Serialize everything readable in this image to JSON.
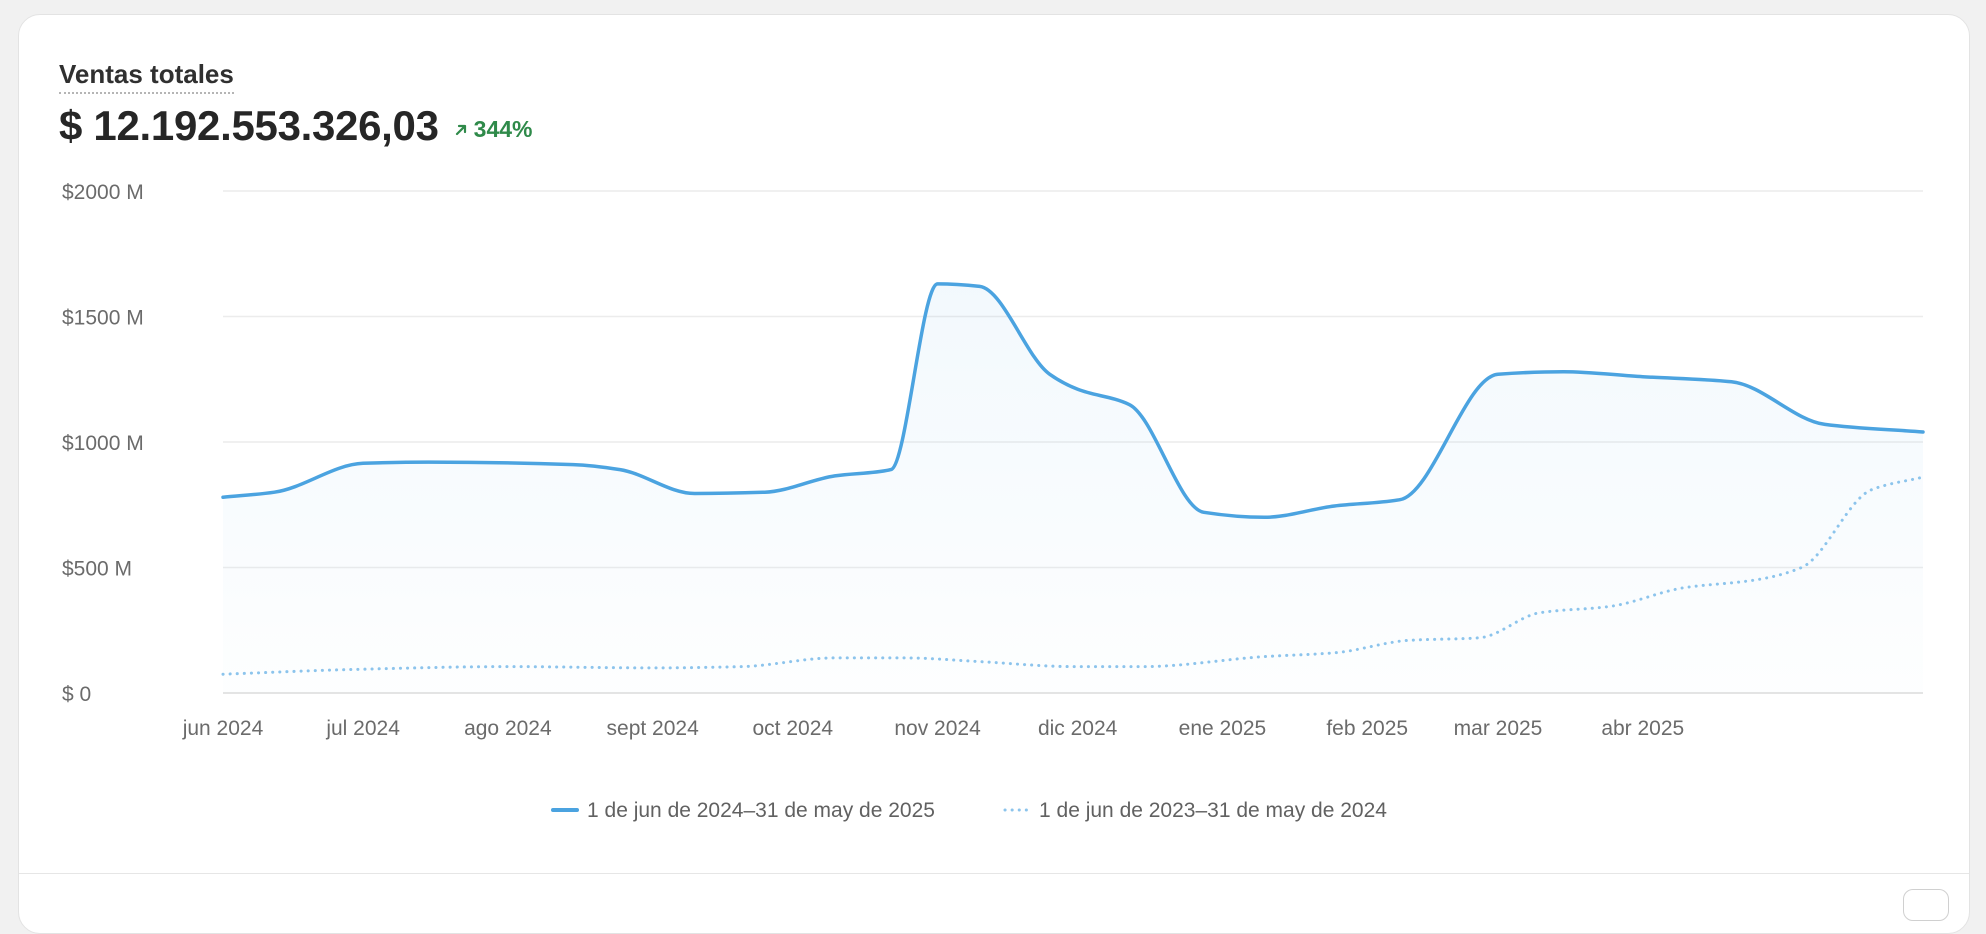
{
  "metric": {
    "title": "Ventas totales",
    "value": "$ 12.192.553.326,03",
    "change": "344%",
    "change_direction": "up",
    "change_color": "#2f8a4a"
  },
  "chart_data": {
    "type": "line",
    "title": "",
    "x_labels": [
      "jun 2024",
      "jul 2024",
      "ago 2024",
      "sept 2024",
      "oct 2024",
      "nov 2024",
      "dic 2024",
      "ene 2025",
      "feb 2025",
      "mar 2025",
      "abr 2025"
    ],
    "y_ticks": [
      {
        "value": 0,
        "label": "$ 0"
      },
      {
        "value": 500,
        "label": "$500 M"
      },
      {
        "value": 1000,
        "label": "$1000 M"
      },
      {
        "value": 1500,
        "label": "$1500 M"
      },
      {
        "value": 2000,
        "label": "$2000 M"
      }
    ],
    "ylim": [
      0,
      2000
    ],
    "y_unit": "M",
    "grid": true,
    "legend_position": "bottom-center",
    "series": [
      {
        "name": "1 de jun de 2024–31 de may de 2025",
        "style": "solid",
        "color": "#4ba3e0",
        "fill": true,
        "points": [
          {
            "x": "2024-06-01",
            "y": 780
          },
          {
            "x": "2024-06-12",
            "y": 800
          },
          {
            "x": "2024-07-01",
            "y": 915
          },
          {
            "x": "2024-07-15",
            "y": 920
          },
          {
            "x": "2024-08-15",
            "y": 910
          },
          {
            "x": "2024-08-25",
            "y": 890
          },
          {
            "x": "2024-09-10",
            "y": 795
          },
          {
            "x": "2024-09-25",
            "y": 800
          },
          {
            "x": "2024-10-10",
            "y": 865
          },
          {
            "x": "2024-10-22",
            "y": 890
          },
          {
            "x": "2024-11-01",
            "y": 1630
          },
          {
            "x": "2024-11-10",
            "y": 1620
          },
          {
            "x": "2024-11-25",
            "y": 1270
          },
          {
            "x": "2024-12-01",
            "y": 1210
          },
          {
            "x": "2024-12-12",
            "y": 1150
          },
          {
            "x": "2024-12-28",
            "y": 720
          },
          {
            "x": "2025-01-10",
            "y": 700
          },
          {
            "x": "2025-01-25",
            "y": 745
          },
          {
            "x": "2025-02-08",
            "y": 770
          },
          {
            "x": "2025-03-01",
            "y": 1270
          },
          {
            "x": "2025-03-15",
            "y": 1280
          },
          {
            "x": "2025-04-01",
            "y": 1260
          },
          {
            "x": "2025-04-20",
            "y": 1240
          },
          {
            "x": "2025-05-10",
            "y": 1070
          },
          {
            "x": "2025-05-31",
            "y": 1040
          }
        ]
      },
      {
        "name": "1 de jun de 2023–31 de may de 2024",
        "style": "dotted",
        "color": "#8cc4ec",
        "fill": false,
        "points": [
          {
            "x": "2024-06-01",
            "y": 75
          },
          {
            "x": "2024-07-01",
            "y": 95
          },
          {
            "x": "2024-08-01",
            "y": 105
          },
          {
            "x": "2024-09-01",
            "y": 100
          },
          {
            "x": "2024-09-20",
            "y": 105
          },
          {
            "x": "2024-10-10",
            "y": 140
          },
          {
            "x": "2024-10-25",
            "y": 140
          },
          {
            "x": "2024-11-10",
            "y": 125
          },
          {
            "x": "2024-11-30",
            "y": 105
          },
          {
            "x": "2024-12-15",
            "y": 105
          },
          {
            "x": "2025-01-10",
            "y": 145
          },
          {
            "x": "2025-01-25",
            "y": 160
          },
          {
            "x": "2025-02-10",
            "y": 210
          },
          {
            "x": "2025-02-25",
            "y": 220
          },
          {
            "x": "2025-03-10",
            "y": 320
          },
          {
            "x": "2025-03-25",
            "y": 345
          },
          {
            "x": "2025-04-10",
            "y": 420
          },
          {
            "x": "2025-04-25",
            "y": 450
          },
          {
            "x": "2025-05-05",
            "y": 500
          },
          {
            "x": "2025-05-20",
            "y": 810
          },
          {
            "x": "2025-05-31",
            "y": 860
          }
        ]
      }
    ]
  }
}
